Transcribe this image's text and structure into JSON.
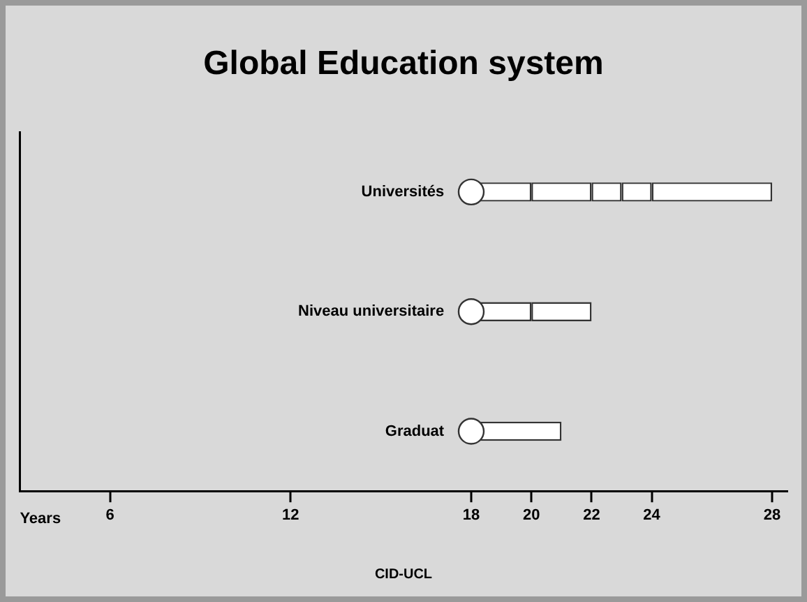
{
  "chart_data": {
    "type": "bar",
    "title": "Global Education system",
    "xlabel": "Years",
    "orientation": "horizontal",
    "categories": [
      "Universités",
      "Niveau universitaire",
      "Graduat"
    ],
    "series": [
      {
        "color": "#ffffff",
        "base": [
          18,
          18,
          18
        ],
        "values": [
          2,
          2,
          3
        ]
      },
      {
        "color": "#ffffff",
        "base": [
          20,
          20,
          null
        ],
        "values": [
          2,
          2,
          null
        ]
      },
      {
        "color": "#ffffff",
        "base": [
          22,
          null,
          null
        ],
        "values": [
          1,
          null,
          null
        ]
      },
      {
        "color": "#ffffff",
        "base": [
          23,
          null,
          null
        ],
        "values": [
          1,
          null,
          null
        ]
      },
      {
        "color": "#ffffff",
        "base": [
          24,
          null,
          null
        ],
        "values": [
          4,
          null,
          null
        ]
      },
      {
        "type": "scatter",
        "color": "#ffffff",
        "marker": "circle",
        "values": [
          18,
          18,
          18
        ]
      }
    ],
    "xlim": [
      3,
      28.5
    ],
    "xticks": [
      6,
      12,
      18,
      20,
      22,
      24,
      28
    ],
    "grid": false,
    "legend": false,
    "annotations": [
      "CID-UCL"
    ]
  }
}
